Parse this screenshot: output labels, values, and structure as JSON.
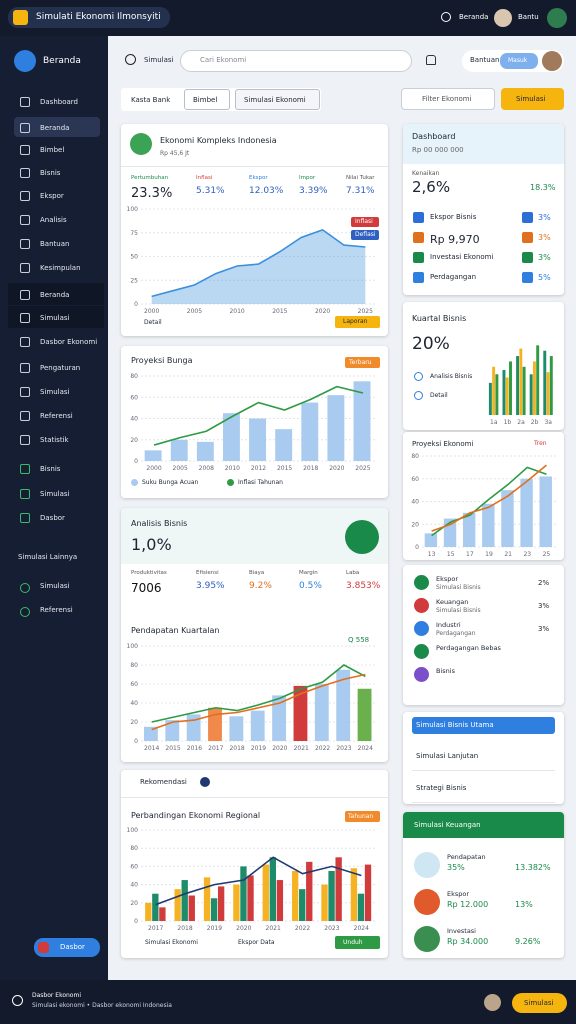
{
  "header": {
    "title": "Simulati Ekonomi Ilmonsyiti",
    "nav": "Beranda",
    "user": "Bantu"
  },
  "sidebar": {
    "title": "Beranda",
    "items": [
      "Dashboard",
      "Beranda",
      "Bimbel",
      "Bisnis",
      "Ekspor",
      "Analisis",
      "Bantuan",
      "Kesimpulan",
      "Beranda",
      "Simulasi",
      "Dasbor Ekonomi",
      "Pengaturan",
      "Simulasi",
      "Referensi",
      "Statistik",
      "Bisnis",
      "Simulasi",
      "Dasbor"
    ],
    "section": "Simulasi Lainnya",
    "section_items": [
      "Simulasi",
      "Referensi"
    ],
    "button": "Dasbor"
  },
  "toolbar": {
    "search_label": "Simulasi",
    "search_placeholder": "Cari Ekonomi",
    "user_label": "Bantuan",
    "user_button": "Masuk",
    "tabs": [
      "Kasta Bank",
      "Bimbel",
      "Simulasi Ekonomi"
    ],
    "filter": "Filter Ekonomi",
    "action": "Simulasi"
  },
  "overview": {
    "title": "Ekonomi Kompleks Indonesia",
    "subtitle": "Rp 45,6 Jt",
    "stats": [
      {
        "label": "Pertumbuhan",
        "value": "23.3%",
        "color": "#1a8a4a"
      },
      {
        "label": "Inflasi",
        "value": "5.31%",
        "color": "#d23b3b"
      },
      {
        "label": "Ekspor",
        "value": "12.03%",
        "color": "#2f7fe0"
      },
      {
        "label": "Impor",
        "value": "3.39%",
        "color": "#1a8a4a"
      },
      {
        "label": "Nilai Tukar",
        "value": "7.31%",
        "color": "#555"
      }
    ],
    "badges": [
      {
        "text": "Inflasi",
        "color": "#d23b3b"
      },
      {
        "text": "Deflasi",
        "color": "#2f5fc0"
      }
    ],
    "footer": "Detail",
    "footer_badge": "Laporan"
  },
  "business": {
    "title": "Analisis Bisnis",
    "value": "1,0%",
    "stats": [
      {
        "label": "Produktivitas",
        "value": "7006",
        "color": "#111"
      },
      {
        "label": "Efisiensi",
        "value": "3.95%",
        "color": "#2f5fc0"
      },
      {
        "label": "Biaya",
        "value": "9.2%",
        "color": "#e0701e"
      },
      {
        "label": "Margin",
        "value": "0.5%",
        "color": "#2f7fe0"
      },
      {
        "label": "Laba",
        "value": "3.853%",
        "color": "#d23b3b"
      }
    ]
  },
  "recommend": {
    "title": "Rekomendasi",
    "footer": [
      "Simulasi Ekonomi",
      "Ekspor Data"
    ],
    "footer_badge": "Unduh"
  },
  "dash": {
    "title": "Dashboard",
    "subtitle": "Rp 00 000 000",
    "value": "2,6%",
    "change": "18.3%",
    "change_label": "Kenaikan",
    "rows": [
      {
        "label": "Ekspor Bisnis",
        "value": "3%",
        "color": "#2b6fd6"
      },
      {
        "label": "Rp 9,970",
        "value": "3%",
        "color": "#e0701e"
      },
      {
        "label": "Investasi Ekonomi",
        "value": "3%",
        "color": "#1a8a4a"
      },
      {
        "label": "Perdagangan",
        "value": "5%",
        "color": "#2f7fe0"
      }
    ]
  },
  "quarter": {
    "title": "Kuartal Bisnis",
    "value": "20%",
    "rows": [
      "Analisis Bisnis",
      "Detail"
    ]
  },
  "items": [
    {
      "title": "Ekspor",
      "sub": "Simulasi Bisnis",
      "value": "2%",
      "color": "#1a8a4a"
    },
    {
      "title": "Keuangan",
      "sub": "Simulasi Bisnis",
      "value": "3%",
      "color": "#d23b3b"
    },
    {
      "title": "Industri",
      "sub": "Perdagangan",
      "value": "3%",
      "color": "#2f7fe0"
    },
    {
      "title": "Perdagangan Bebas",
      "color": "#1a8a4a"
    },
    {
      "title": "Bisnis",
      "color": "#7b4fc9"
    }
  ],
  "accordion": [
    "Simulasi Bisnis Utama",
    "Simulasi Lanjutan",
    "Strategi Bisnis"
  ],
  "finance": {
    "title": "Simulasi Keuangan",
    "rows": [
      {
        "title": "Pendapatan",
        "sub": "35%",
        "value": "13.382%"
      },
      {
        "title": "Ekspor",
        "sub": "Rp 12.000",
        "value": "13%"
      },
      {
        "title": "Investasi",
        "sub": "Rp 34.000",
        "value": "9.26%"
      }
    ]
  },
  "footer": {
    "title": "Dasbor Ekonomi",
    "sub": "Simulasi ekonomi • Dasbor ekonomi Indonesia",
    "button": "Simulasi"
  },
  "charts": [
    {
      "type": "area",
      "categories": [
        "2000",
        null,
        "2005",
        null,
        "2010",
        null,
        "2015",
        null,
        "2020",
        null,
        "2025"
      ],
      "ylim": [
        0,
        100
      ],
      "yticks": [
        0,
        25,
        50,
        75,
        100
      ],
      "series": [
        {
          "type": "area",
          "color": "#3b8fdc",
          "values": [
            8,
            14,
            20,
            32,
            40,
            42,
            55,
            70,
            78,
            62,
            60
          ]
        }
      ]
    },
    {
      "type": "bar",
      "title": "Proyeksi Bunga",
      "badge": "Terbaru",
      "categories": [
        "2000",
        "2005",
        "2008",
        "2010",
        "2012",
        "2015",
        "2018",
        "2020",
        "2025"
      ],
      "ylim": [
        0,
        80
      ],
      "yticks": [
        0,
        20,
        40,
        60,
        80
      ],
      "series": [
        {
          "name": "Suku Bunga Acuan",
          "type": "bar",
          "color": "#a9cbf0",
          "values": [
            10,
            20,
            18,
            45,
            40,
            30,
            55,
            62,
            75
          ]
        },
        {
          "name": "Inflasi Tahunan",
          "type": "line",
          "color": "#2e9a44",
          "values": [
            15,
            22,
            28,
            42,
            55,
            48,
            58,
            70,
            64
          ]
        }
      ]
    },
    {
      "type": "bar",
      "title": "Pendapatan Kuartalan",
      "badge": "Q 558",
      "categories": [
        "2014",
        "2015",
        "2016",
        "2017",
        "2018",
        "2019",
        "2020",
        "2021",
        "2022",
        "2023",
        "2024"
      ],
      "ylim": [
        0,
        100
      ],
      "yticks": [
        0,
        20,
        40,
        60,
        80,
        100
      ],
      "series": [
        {
          "type": "bar",
          "colors": [
            "#a9cbf0",
            "#a9cbf0",
            "#a9cbf0",
            "#f08a4b",
            "#a9cbf0",
            "#a9cbf0",
            "#a9cbf0",
            "#d23b3b",
            "#a9cbf0",
            "#a9cbf0",
            "#6ab04c"
          ],
          "values": [
            15,
            22,
            28,
            35,
            26,
            32,
            48,
            58,
            60,
            75,
            55
          ]
        },
        {
          "type": "line",
          "color": "#2e9a44",
          "values": [
            20,
            25,
            30,
            35,
            32,
            38,
            45,
            55,
            62,
            80,
            68
          ]
        },
        {
          "type": "line",
          "color": "#e0701e",
          "values": [
            12,
            20,
            22,
            28,
            30,
            35,
            40,
            50,
            58,
            65,
            70
          ]
        }
      ]
    },
    {
      "type": "bar",
      "title": "Perbandingan Ekonomi Regional",
      "badge": "Tahunan",
      "categories": [
        "2017",
        "2018",
        "2019",
        "2020",
        "2021",
        "2022",
        "2023",
        "2024"
      ],
      "ylim": [
        0,
        100
      ],
      "yticks": [
        0,
        20,
        40,
        60,
        80,
        100
      ],
      "series": [
        {
          "type": "bar",
          "color": "#f5b324",
          "values": [
            20,
            35,
            48,
            40,
            62,
            55,
            40,
            58
          ]
        },
        {
          "type": "bar",
          "color": "#1e8c6a",
          "values": [
            30,
            45,
            25,
            60,
            70,
            35,
            55,
            30
          ]
        },
        {
          "type": "bar",
          "color": "#d23b3b",
          "values": [
            15,
            28,
            38,
            50,
            45,
            65,
            70,
            62
          ]
        },
        {
          "type": "line",
          "color": "#1f3a70",
          "values": [
            18,
            30,
            40,
            45,
            70,
            52,
            60,
            50
          ]
        }
      ]
    },
    {
      "type": "bar",
      "categories": [
        "1a",
        "1b",
        "2a",
        "2b",
        "3a"
      ],
      "ylim": [
        0,
        70
      ],
      "series": [
        {
          "type": "bar",
          "color": "#1e8c6a",
          "values": [
            30,
            42,
            55,
            38,
            60
          ]
        },
        {
          "type": "bar",
          "color": "#f5b324",
          "values": [
            45,
            35,
            62,
            50,
            40
          ]
        },
        {
          "type": "bar",
          "color": "#2e9a44",
          "values": [
            38,
            50,
            45,
            65,
            55
          ]
        }
      ]
    },
    {
      "type": "bar",
      "title": "Proyeksi Ekonomi",
      "badge": "Tren",
      "categories": [
        "13",
        "15",
        "17",
        "19",
        "21",
        "23",
        "25"
      ],
      "ylim": [
        0,
        80
      ],
      "yticks": [
        0,
        20,
        40,
        60,
        80
      ],
      "series": [
        {
          "type": "bar",
          "color": "#a9cbf0",
          "values": [
            12,
            25,
            30,
            38,
            50,
            60,
            62
          ]
        },
        {
          "type": "line",
          "color": "#2e9a44",
          "values": [
            10,
            22,
            28,
            42,
            55,
            70,
            64
          ]
        },
        {
          "type": "line",
          "color": "#e0701e",
          "values": [
            14,
            20,
            30,
            35,
            45,
            58,
            72
          ]
        }
      ]
    }
  ]
}
